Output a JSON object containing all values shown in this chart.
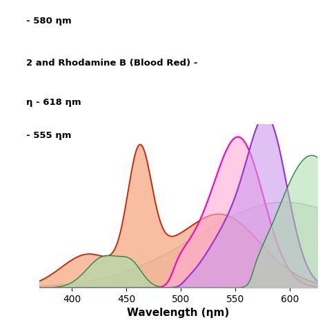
{
  "title_lines": [
    "- 580 ηm",
    "2 and Rhodamine B (Blood Red) -",
    "η - 618 ηm",
    "- 555 ηm"
  ],
  "xlabel": "Wavelength (ηm)",
  "xlim": [
    370,
    625
  ],
  "ylim": [
    0,
    1.05
  ],
  "x_ticks": [
    400,
    450,
    500,
    550,
    600
  ],
  "background_color": "#ffffff",
  "orange_line": "#cc2200",
  "orange_fill": "#f5a882",
  "green_line": "#228844",
  "green_fill": "#aaddaa",
  "gray_line": "#aaaaaa",
  "gray_fill": "#d4d4d4",
  "pink_line": "#ff00bb",
  "pink_fill": "#ffaad4",
  "purple_line": "#9933cc",
  "purple_fill": "#cc99ee"
}
